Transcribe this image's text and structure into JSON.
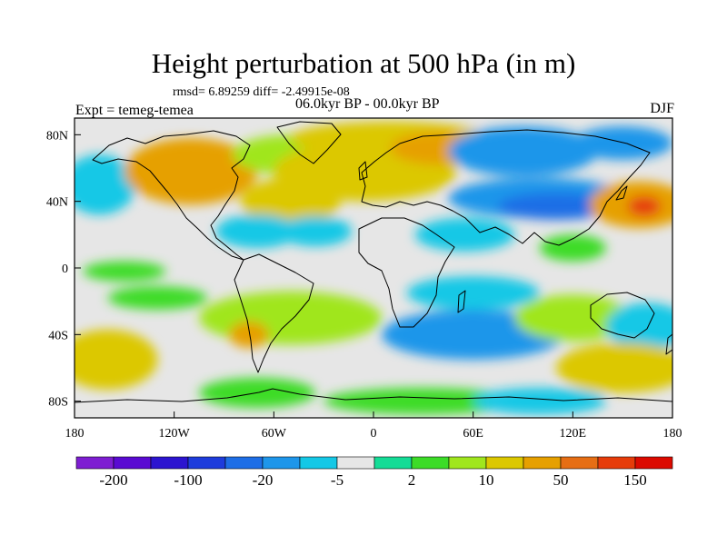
{
  "title": "Height perturbation at 500 hPa (in m)",
  "stats": "rmsd= 6.89259 diff= -2.49915e-08",
  "period": "06.0kyr BP - 00.0kyr BP",
  "experiment": "Expt = temeg-temea",
  "season": "DJF",
  "map": {
    "projection": "cylindrical equidistant",
    "lon_range": [
      -180,
      180
    ],
    "lat_range": [
      -90,
      90
    ],
    "lon_ticks": [
      {
        "value": -180,
        "label": "180"
      },
      {
        "value": -120,
        "label": "120W"
      },
      {
        "value": -60,
        "label": "60W"
      },
      {
        "value": 0,
        "label": "0"
      },
      {
        "value": 60,
        "label": "60E"
      },
      {
        "value": 120,
        "label": "120E"
      },
      {
        "value": 180,
        "label": "180"
      }
    ],
    "lat_ticks": [
      {
        "value": 80,
        "label": "80N"
      },
      {
        "value": 40,
        "label": "40N"
      },
      {
        "value": 0,
        "label": "0"
      },
      {
        "value": -40,
        "label": "40S"
      },
      {
        "value": -80,
        "label": "80S"
      }
    ],
    "neutral_color": "#e6e6e6",
    "anomalies": [
      {
        "lon": -165,
        "lat": 50,
        "rx": 22,
        "ry": 18,
        "level": 6
      },
      {
        "lon": -110,
        "lat": 58,
        "rx": 40,
        "ry": 20,
        "level": 12
      },
      {
        "lon": -50,
        "lat": 40,
        "rx": 30,
        "ry": 14,
        "level": 11
      },
      {
        "lon": -50,
        "lat": 68,
        "rx": 35,
        "ry": 12,
        "level": 10
      },
      {
        "lon": -5,
        "lat": 58,
        "rx": 55,
        "ry": 18,
        "level": 11
      },
      {
        "lon": 10,
        "lat": 78,
        "rx": 60,
        "ry": 10,
        "level": 11
      },
      {
        "lon": 40,
        "lat": 72,
        "rx": 30,
        "ry": 10,
        "level": 12
      },
      {
        "lon": 90,
        "lat": 70,
        "rx": 45,
        "ry": 15,
        "level": 5
      },
      {
        "lon": 100,
        "lat": 42,
        "rx": 55,
        "ry": 12,
        "level": 5
      },
      {
        "lon": 110,
        "lat": 37,
        "rx": 35,
        "ry": 8,
        "level": 4
      },
      {
        "lon": 160,
        "lat": 38,
        "rx": 30,
        "ry": 14,
        "level": 12
      },
      {
        "lon": 163,
        "lat": 37,
        "rx": 10,
        "ry": 6,
        "level": 14
      },
      {
        "lon": 150,
        "lat": 75,
        "rx": 30,
        "ry": 10,
        "level": 5
      },
      {
        "lon": -70,
        "lat": 22,
        "rx": 25,
        "ry": 10,
        "level": 6
      },
      {
        "lon": -35,
        "lat": 22,
        "rx": 22,
        "ry": 9,
        "level": 6
      },
      {
        "lon": 55,
        "lat": 20,
        "rx": 30,
        "ry": 10,
        "level": 6
      },
      {
        "lon": 120,
        "lat": 12,
        "rx": 20,
        "ry": 8,
        "level": 9
      },
      {
        "lon": -150,
        "lat": -2,
        "rx": 25,
        "ry": 6,
        "level": 9
      },
      {
        "lon": -130,
        "lat": -18,
        "rx": 30,
        "ry": 7,
        "level": 9
      },
      {
        "lon": -50,
        "lat": -30,
        "rx": 55,
        "ry": 16,
        "level": 10
      },
      {
        "lon": -75,
        "lat": -40,
        "rx": 12,
        "ry": 8,
        "level": 12
      },
      {
        "lon": 60,
        "lat": -15,
        "rx": 40,
        "ry": 10,
        "level": 6
      },
      {
        "lon": 60,
        "lat": -40,
        "rx": 55,
        "ry": 15,
        "level": 5
      },
      {
        "lon": 120,
        "lat": -30,
        "rx": 35,
        "ry": 14,
        "level": 10
      },
      {
        "lon": 165,
        "lat": -35,
        "rx": 25,
        "ry": 14,
        "level": 6
      },
      {
        "lon": -160,
        "lat": -55,
        "rx": 30,
        "ry": 18,
        "level": 11
      },
      {
        "lon": -70,
        "lat": -75,
        "rx": 35,
        "ry": 9,
        "level": 9
      },
      {
        "lon": 30,
        "lat": -80,
        "rx": 60,
        "ry": 8,
        "level": 9
      },
      {
        "lon": 150,
        "lat": -60,
        "rx": 40,
        "ry": 15,
        "level": 11
      },
      {
        "lon": 100,
        "lat": -80,
        "rx": 40,
        "ry": 8,
        "level": 6
      }
    ]
  },
  "colorbar": {
    "colors": [
      "#7e1ed2",
      "#5a0ad2",
      "#2c14d0",
      "#1e3cdc",
      "#1e6ee6",
      "#1e96ea",
      "#14c8e6",
      "#e6e6e6",
      "#14dc96",
      "#3cdc28",
      "#a0e61e",
      "#dcc800",
      "#e6a000",
      "#e66e14",
      "#e63c0a",
      "#dc0a00"
    ],
    "labels": [
      "-200",
      "-100",
      "-20",
      "-5",
      "2",
      "10",
      "50",
      "150"
    ]
  }
}
